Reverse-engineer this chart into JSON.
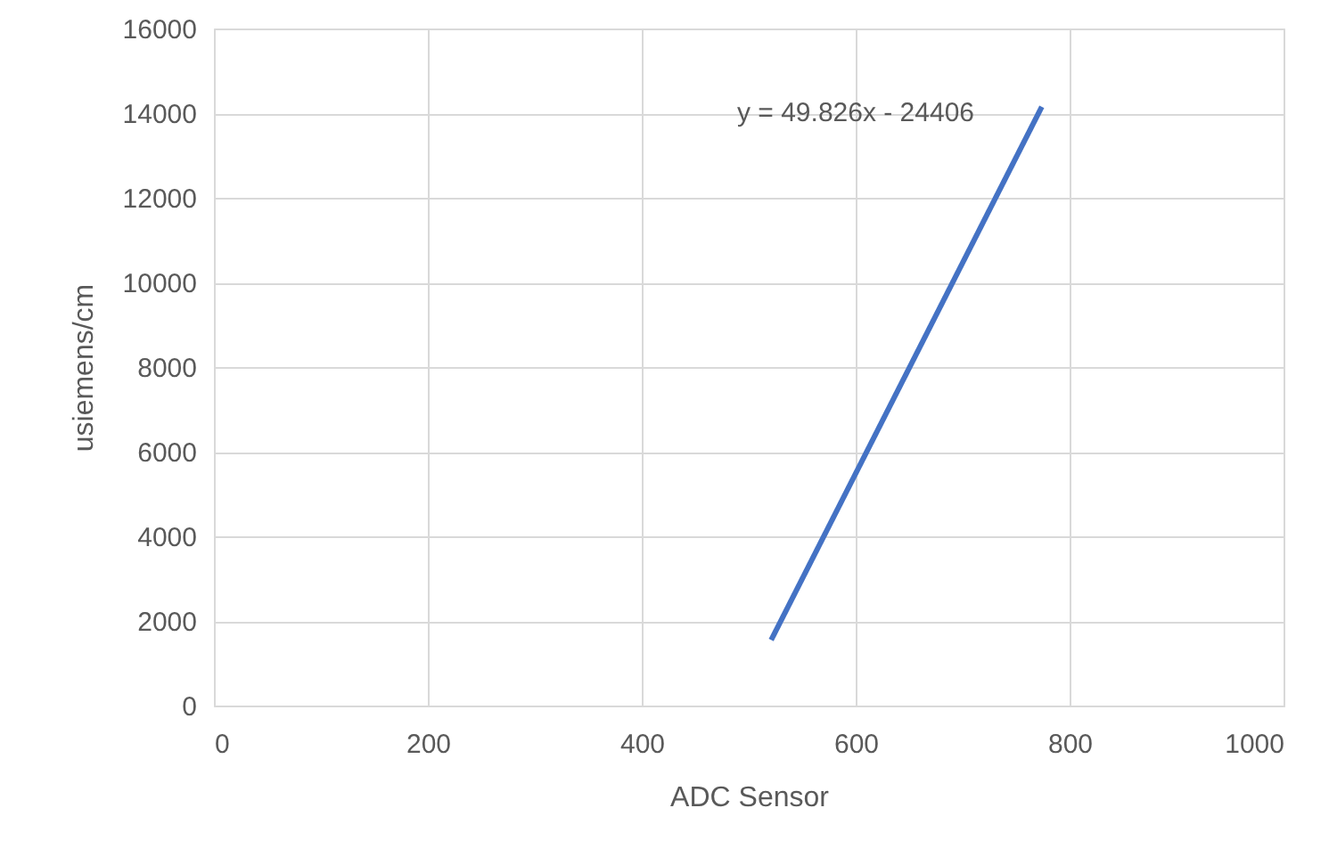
{
  "chart_data": {
    "type": "line",
    "xlabel": "ADC Sensor",
    "ylabel": "usiemens/cm",
    "series": [
      {
        "color": "#4472c4",
        "x": [
          521,
          774
        ],
        "values": [
          1550,
          14150
        ]
      }
    ],
    "xlim": [
      0,
      1000
    ],
    "xticks": [
      0,
      200,
      400,
      600,
      800,
      1000
    ],
    "ylim": [
      0,
      16000
    ],
    "yticks": [
      0,
      2000,
      4000,
      6000,
      8000,
      10000,
      12000,
      14000,
      16000
    ],
    "grid": true,
    "marker": "none",
    "line_style": "solid",
    "annotations": [
      "y = 49.826x - 24406"
    ]
  }
}
